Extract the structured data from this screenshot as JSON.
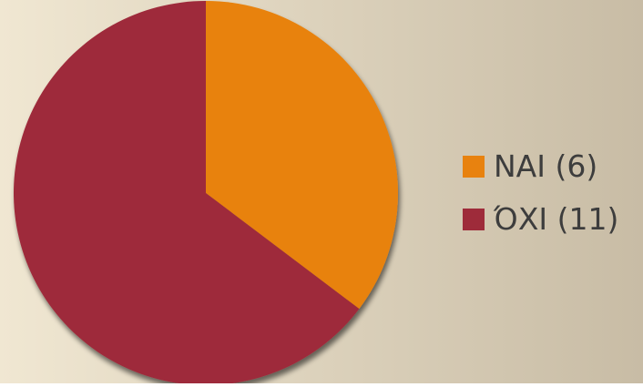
{
  "chart_data": {
    "type": "pie",
    "title": "",
    "slices": [
      {
        "label": "NAI (6)",
        "value": 6,
        "color": "#E8820F"
      },
      {
        "label": "ΌΧΙ (11)",
        "value": 11,
        "color": "#9E2B3A"
      }
    ],
    "legend_position": "right",
    "start_angle_deg": 0,
    "direction": "clockwise"
  },
  "background": {
    "left_color": "#F0E7D2",
    "right_color": "#C8BCA5"
  }
}
